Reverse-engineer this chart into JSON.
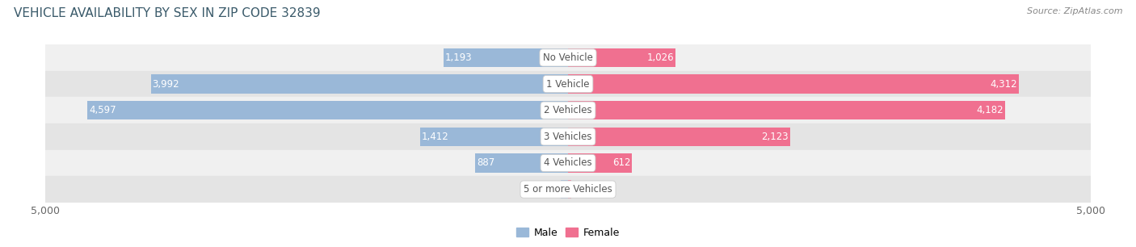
{
  "title": "VEHICLE AVAILABILITY BY SEX IN ZIP CODE 32839",
  "source": "Source: ZipAtlas.com",
  "categories": [
    "No Vehicle",
    "1 Vehicle",
    "2 Vehicles",
    "3 Vehicles",
    "4 Vehicles",
    "5 or more Vehicles"
  ],
  "male_values": [
    1193,
    3992,
    4597,
    1412,
    887,
    72
  ],
  "female_values": [
    1026,
    4312,
    4182,
    2123,
    612,
    33
  ],
  "male_color": "#9ab8d8",
  "female_color": "#f07090",
  "xlim": 5000,
  "bar_height": 0.72,
  "title_fontsize": 11,
  "label_fontsize": 8.5,
  "tick_fontsize": 9,
  "source_fontsize": 8,
  "legend_fontsize": 9,
  "background_color": "#ffffff",
  "row_color_even": "#f0f0f0",
  "row_color_odd": "#e4e4e4",
  "title_color": "#3a5a6a",
  "source_color": "#888888",
  "outside_label_color": "#555555",
  "inside_label_color": "#ffffff",
  "center_label_color": "#555555"
}
